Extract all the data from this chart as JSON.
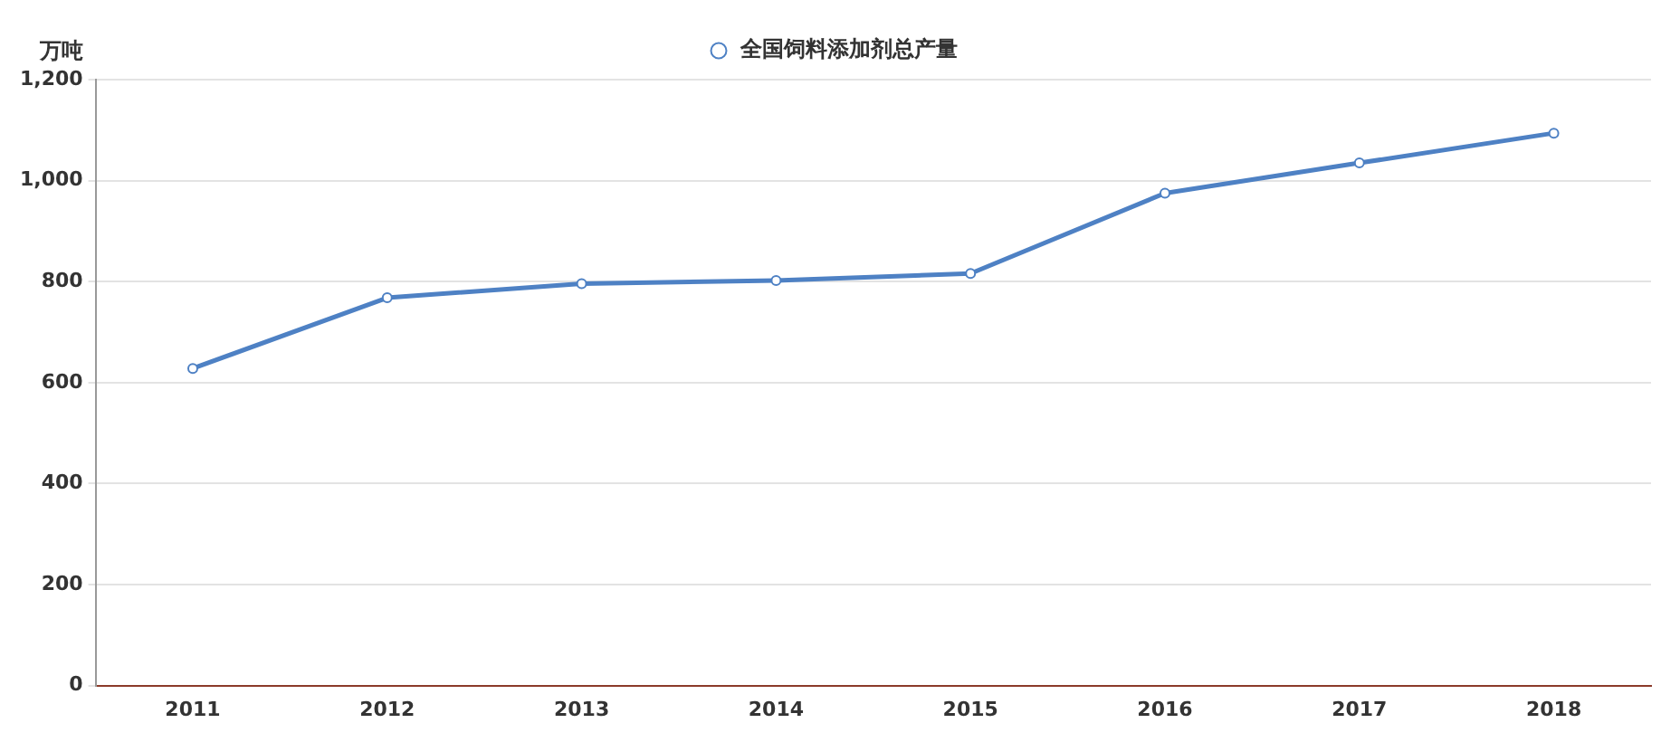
{
  "chart_data": {
    "type": "line",
    "ylabel": "万吨",
    "categories": [
      "2011",
      "2012",
      "2013",
      "2014",
      "2015",
      "2016",
      "2017",
      "2018"
    ],
    "series": [
      {
        "name": "全国饲料添加剂总产量",
        "color": "#4e81c4",
        "values": [
          628,
          768,
          796,
          802,
          816,
          975,
          1035,
          1094
        ]
      }
    ],
    "ylim": [
      0,
      1200
    ],
    "yticks": [
      0,
      200,
      400,
      600,
      800,
      {
        "value": 1000,
        "label": "1,000"
      },
      {
        "value": 1200,
        "label": "1,200"
      }
    ],
    "grid": "y",
    "legend": "top",
    "marker": "circle",
    "line_style": "solid"
  }
}
